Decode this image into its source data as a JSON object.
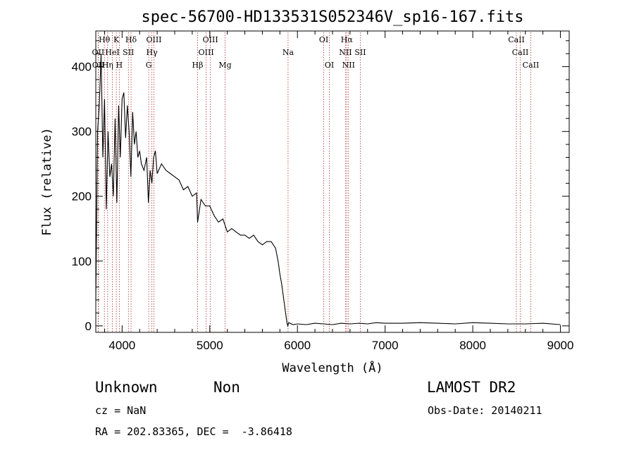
{
  "chart_data": {
    "type": "line",
    "title": "spec-56700-HD133531S052346V_sp16-167.fits",
    "xlabel": "Wavelength (Å)",
    "ylabel": "Flux (relative)",
    "xlim": [
      3700,
      9100
    ],
    "ylim": [
      -10,
      455
    ],
    "xticks": [
      4000,
      5000,
      6000,
      7000,
      8000,
      9000
    ],
    "yticks": [
      0,
      100,
      200,
      300,
      400
    ],
    "series": [
      {
        "x": [
          3700,
          3720,
          3740,
          3760,
          3780,
          3800,
          3820,
          3840,
          3860,
          3880,
          3900,
          3920,
          3940,
          3960,
          3980,
          4000,
          4020,
          4040,
          4060,
          4080,
          4100,
          4120,
          4140,
          4160,
          4180,
          4200,
          4220,
          4250,
          4280,
          4300,
          4320,
          4340,
          4360,
          4380,
          4400,
          4450,
          4500,
          4550,
          4600,
          4650,
          4700,
          4750,
          4800,
          4850,
          4861,
          4900,
          4950,
          5000,
          5050,
          5100,
          5150,
          5200,
          5250,
          5300,
          5350,
          5400,
          5450,
          5500,
          5550,
          5600,
          5650,
          5700,
          5750,
          5780,
          5800,
          5820,
          5840,
          5860,
          5880,
          5890,
          5900,
          5950,
          6000,
          6100,
          6200,
          6300,
          6400,
          6500,
          6600,
          6700,
          6800,
          6900,
          7000,
          7200,
          7400,
          7600,
          7800,
          8000,
          8200,
          8400,
          8600,
          8800,
          9000
        ],
        "y": [
          40,
          300,
          340,
          420,
          260,
          350,
          180,
          300,
          230,
          250,
          200,
          320,
          190,
          340,
          260,
          350,
          360,
          290,
          340,
          300,
          230,
          330,
          280,
          300,
          260,
          270,
          250,
          240,
          260,
          190,
          240,
          220,
          260,
          270,
          235,
          250,
          240,
          235,
          230,
          225,
          210,
          215,
          200,
          205,
          160,
          195,
          185,
          185,
          170,
          160,
          165,
          145,
          150,
          145,
          140,
          140,
          135,
          140,
          130,
          125,
          130,
          130,
          120,
          100,
          80,
          65,
          45,
          25,
          5,
          0,
          5,
          2,
          3,
          2,
          4,
          3,
          2,
          4,
          3,
          4,
          3,
          5,
          4,
          4,
          5,
          4,
          3,
          5,
          4,
          3,
          3,
          4,
          2
        ]
      }
    ],
    "lines": [
      {
        "label": "Hθ",
        "x": 3798,
        "row": 0
      },
      {
        "label": "K",
        "x": 3934,
        "row": 0
      },
      {
        "label": "Hδ",
        "x": 4102,
        "row": 0
      },
      {
        "label": "OIII",
        "x": 4363,
        "row": 0
      },
      {
        "label": "OIII",
        "x": 5007,
        "row": 0
      },
      {
        "label": "OI",
        "x": 6300,
        "row": 0
      },
      {
        "label": "Hα",
        "x": 6563,
        "row": 0
      },
      {
        "label": "CaII",
        "x": 8498,
        "row": 0
      },
      {
        "label": "OII",
        "x": 3727,
        "row": 1
      },
      {
        "label": "HeI",
        "x": 3889,
        "row": 1
      },
      {
        "label": "SII",
        "x": 4072,
        "row": 1
      },
      {
        "label": "Hγ",
        "x": 4340,
        "row": 1
      },
      {
        "label": "OIII",
        "x": 4959,
        "row": 1
      },
      {
        "label": "Na",
        "x": 5893,
        "row": 1
      },
      {
        "label": "NII",
        "x": 6548,
        "row": 1
      },
      {
        "label": "SII",
        "x": 6717,
        "row": 1
      },
      {
        "label": "CaII",
        "x": 8542,
        "row": 1
      },
      {
        "label": "OII",
        "x": 3729,
        "row": 2
      },
      {
        "label": "Hη",
        "x": 3835,
        "row": 2
      },
      {
        "label": "H",
        "x": 3968,
        "row": 2
      },
      {
        "label": "G",
        "x": 4304,
        "row": 2
      },
      {
        "label": "Hβ",
        "x": 4861,
        "row": 2
      },
      {
        "label": "Mg",
        "x": 5175,
        "row": 2
      },
      {
        "label": "OI",
        "x": 6364,
        "row": 2
      },
      {
        "label": "NII",
        "x": 6583,
        "row": 2
      },
      {
        "label": "CaII",
        "x": 8662,
        "row": 2
      }
    ]
  },
  "info": {
    "object_class": "Unknown",
    "subclass": "Non",
    "survey": "LAMOST DR2",
    "cz": "cz = NaN",
    "obs_date": "Obs-Date: 20140211",
    "coords": "RA = 202.83365, DEC =  -3.86418"
  }
}
